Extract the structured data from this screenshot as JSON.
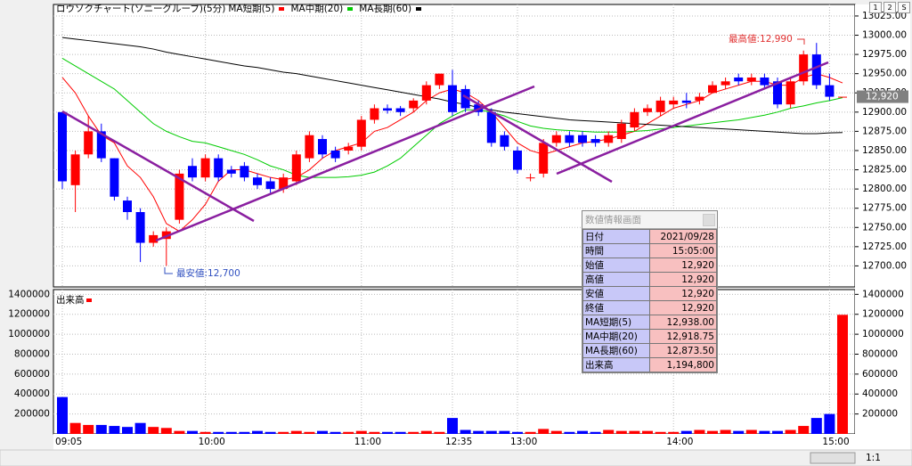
{
  "chart_data": [
    {
      "type": "candlestick",
      "title": "ロウソクチャート(ソニーグループ)(5分)",
      "categories": [
        "09:05",
        null,
        null,
        null,
        null,
        null,
        null,
        null,
        null,
        null,
        null,
        "10:00",
        null,
        null,
        null,
        null,
        null,
        null,
        null,
        null,
        null,
        null,
        null,
        "11:00",
        null,
        null,
        null,
        null,
        null,
        null,
        "12:35",
        null,
        null,
        null,
        null,
        "13:00",
        null,
        null,
        null,
        null,
        null,
        null,
        null,
        null,
        null,
        null,
        null,
        "14:00",
        null,
        null,
        null,
        null,
        null,
        null,
        null,
        null,
        null,
        null,
        null,
        "15:00",
        null
      ],
      "open": [
        12900,
        12805,
        12845,
        12875,
        12840,
        12785,
        12770,
        12730,
        12735,
        12760,
        12830,
        12815,
        12840,
        12825,
        12830,
        12815,
        12810,
        12800,
        12810,
        12840,
        12865,
        12850,
        12850,
        12855,
        12890,
        12905,
        12905,
        12905,
        12915,
        12935,
        12935,
        12930,
        12910,
        12900,
        12870,
        12850,
        12815,
        12820,
        12860,
        12870,
        12870,
        12865,
        12860,
        12865,
        12880,
        12900,
        12900,
        12910,
        12915,
        12915,
        12925,
        12935,
        12945,
        12940,
        12945,
        12940,
        12910,
        12940,
        12975,
        12935,
        12920
      ],
      "high": [
        12900,
        12850,
        12895,
        12885,
        12840,
        12790,
        12775,
        12745,
        12750,
        12825,
        12840,
        12845,
        12845,
        12830,
        12835,
        12820,
        12815,
        12820,
        12850,
        12875,
        12870,
        12855,
        12860,
        12895,
        12910,
        12910,
        12908,
        12918,
        12940,
        12950,
        12955,
        12935,
        12915,
        12905,
        12875,
        12855,
        12820,
        12865,
        12875,
        12875,
        12875,
        12870,
        12875,
        12890,
        12905,
        12910,
        12920,
        12920,
        12925,
        12925,
        12940,
        12945,
        12950,
        12950,
        12950,
        12945,
        12945,
        12980,
        12990,
        12950,
        12920
      ],
      "low": [
        12800,
        12770,
        12840,
        12835,
        12785,
        12760,
        12705,
        12725,
        12700,
        12755,
        12810,
        12810,
        12810,
        12815,
        12810,
        12800,
        12795,
        12795,
        12805,
        12835,
        12840,
        12835,
        12845,
        12850,
        12885,
        12898,
        12895,
        12900,
        12910,
        12930,
        12895,
        12900,
        12895,
        12855,
        12850,
        12820,
        12810,
        12815,
        12855,
        12855,
        12855,
        12855,
        12855,
        12860,
        12875,
        12895,
        12895,
        12905,
        12905,
        12910,
        12925,
        12930,
        12935,
        12935,
        12930,
        12905,
        12905,
        12935,
        12930,
        12915,
        12920
      ],
      "close": [
        12810,
        12845,
        12875,
        12840,
        12790,
        12770,
        12730,
        12740,
        12745,
        12820,
        12815,
        12840,
        12815,
        12820,
        12815,
        12805,
        12800,
        12815,
        12845,
        12870,
        12845,
        12840,
        12855,
        12890,
        12905,
        12902,
        12900,
        12915,
        12935,
        12950,
        12900,
        12905,
        12900,
        12860,
        12855,
        12825,
        12815,
        12860,
        12870,
        12860,
        12860,
        12860,
        12870,
        12885,
        12900,
        12905,
        12915,
        12915,
        12912,
        12920,
        12935,
        12940,
        12940,
        12945,
        12935,
        12910,
        12940,
        12975,
        12935,
        12920,
        12920
      ],
      "up_color": "#ff0000",
      "down_color": "#0000ff",
      "series": [
        {
          "name": "MA短期(5)",
          "color": "#ff0000",
          "values": [
            12945,
            12925,
            12895,
            12870,
            12860,
            12830,
            12815,
            12790,
            12755,
            12745,
            12760,
            12780,
            12810,
            12825,
            12825,
            12820,
            12815,
            12812,
            12815,
            12825,
            12840,
            12850,
            12855,
            12860,
            12875,
            12880,
            12890,
            12900,
            12915,
            12925,
            12930,
            12925,
            12915,
            12900,
            12880,
            12860,
            12850,
            12845,
            12850,
            12855,
            12860,
            12862,
            12865,
            12870,
            12875,
            12885,
            12895,
            12905,
            12910,
            12915,
            12925,
            12930,
            12935,
            12940,
            12940,
            12935,
            12935,
            12945,
            12950,
            12945,
            12938
          ]
        },
        {
          "name": "MA中期(20)",
          "color": "#00cc00",
          "values": [
            12970,
            12960,
            12950,
            12940,
            12930,
            12915,
            12900,
            12885,
            12875,
            12868,
            12862,
            12860,
            12855,
            12850,
            12845,
            12838,
            12830,
            12825,
            12818,
            12815,
            12815,
            12815,
            12816,
            12818,
            12822,
            12830,
            12840,
            12855,
            12870,
            12885,
            12895,
            12903,
            12903,
            12900,
            12895,
            12888,
            12882,
            12879,
            12877,
            12876,
            12875,
            12874,
            12874,
            12874,
            12875,
            12876,
            12878,
            12880,
            12882,
            12884,
            12886,
            12888,
            12890,
            12893,
            12896,
            12900,
            12905,
            12908,
            12912,
            12915,
            12918.75
          ]
        },
        {
          "name": "MA長期(60)",
          "color": "#000000",
          "values": [
            12997,
            12995,
            12993,
            12991,
            12989,
            12987,
            12985,
            12982,
            12978,
            12975,
            12972,
            12969,
            12966,
            12963,
            12960,
            12958,
            12955,
            12952,
            12950,
            12947,
            12944,
            12941,
            12938,
            12935,
            12932,
            12929,
            12926,
            12923,
            12920,
            12917,
            12913,
            12910,
            12906,
            12903,
            12900,
            12898,
            12896,
            12894,
            12892,
            12890,
            12889,
            12888,
            12887,
            12886,
            12885,
            12884,
            12883,
            12882,
            12881,
            12880,
            12879,
            12878,
            12877,
            12876,
            12875,
            12874,
            12873,
            12872,
            12872,
            12873,
            12873.5
          ]
        }
      ],
      "ylim": [
        12675,
        13040
      ],
      "yticks": [
        {
          "value": 12700,
          "label": "12700.00"
        },
        {
          "value": 12725,
          "label": "12725.00"
        },
        {
          "value": 12750,
          "label": "12750.00"
        },
        {
          "value": 12775,
          "label": "12775.00"
        },
        {
          "value": 12800,
          "label": "12800.00"
        },
        {
          "value": 12825,
          "label": "12825.00"
        },
        {
          "value": 12850,
          "label": "12850.00"
        },
        {
          "value": 12875,
          "label": "12875.00"
        },
        {
          "value": 12900,
          "label": "12900.00"
        },
        {
          "value": 12925,
          "label": "12925.00"
        },
        {
          "value": 12950,
          "label": "12950.00"
        },
        {
          "value": 12975,
          "label": "12975.00"
        },
        {
          "value": 13000,
          "label": "13000.00"
        },
        {
          "value": 13025,
          "label": "13025.00"
        }
      ],
      "grid": true,
      "current_price": {
        "value": 12920,
        "label": "12,920"
      },
      "annotations": [
        "最高値:12,990",
        "最安値:12,700"
      ]
    },
    {
      "type": "bar",
      "title": "出来高",
      "color": "#ff0000",
      "values": [
        370000,
        110000,
        90000,
        90000,
        80000,
        70000,
        110000,
        70000,
        60000,
        30000,
        30000,
        20000,
        20000,
        20000,
        20000,
        30000,
        20000,
        20000,
        30000,
        20000,
        30000,
        20000,
        20000,
        30000,
        20000,
        20000,
        20000,
        20000,
        30000,
        20000,
        160000,
        40000,
        30000,
        30000,
        30000,
        20000,
        20000,
        50000,
        30000,
        20000,
        30000,
        20000,
        40000,
        30000,
        30000,
        30000,
        20000,
        20000,
        30000,
        40000,
        30000,
        40000,
        30000,
        40000,
        30000,
        30000,
        40000,
        80000,
        160000,
        200000,
        1194800
      ],
      "ylim": [
        0,
        1430000
      ],
      "yticks": [
        200000,
        400000,
        600000,
        800000,
        1000000,
        1200000,
        1400000
      ],
      "grid": true
    }
  ],
  "info_panel": {
    "title": "数値情報画面",
    "rows": [
      [
        "日付",
        "2021/09/28"
      ],
      [
        "時間",
        "15:05:00"
      ],
      [
        "始値",
        "12,920"
      ],
      [
        "高値",
        "12,920"
      ],
      [
        "安値",
        "12,920"
      ],
      [
        "終値",
        "12,920"
      ],
      [
        "MA短期(5)",
        "12,938.00"
      ],
      [
        "MA中期(20)",
        "12,918.75"
      ],
      [
        "MA長期(60)",
        "12,873.50"
      ],
      [
        "出来高",
        "1,194,800"
      ]
    ]
  },
  "toolbar": {
    "buttons": [
      "1",
      "2",
      "S"
    ],
    "zoom": "1:1"
  }
}
